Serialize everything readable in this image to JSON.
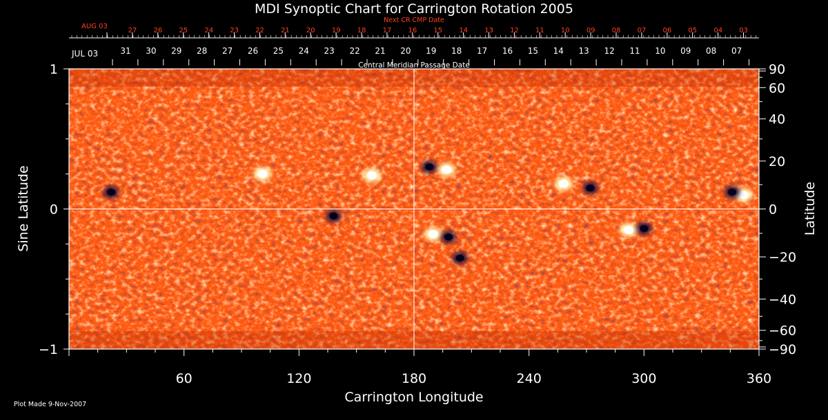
{
  "chart_data": {
    "type": "heatmap",
    "title": "MDI Synoptic Chart for Carrington Rotation 2005",
    "xlabel": "Carrington Longitude",
    "ylabel_left": "Sine Latitude",
    "ylabel_right": "Latitude",
    "xlim": [
      0,
      360
    ],
    "ylim": [
      -1,
      1
    ],
    "x_ticks": [
      60,
      120,
      180,
      240,
      300,
      360
    ],
    "y_ticks_left": [
      -1,
      0,
      1
    ],
    "y_ticks_left_labels": [
      "−1",
      "0",
      "1"
    ],
    "y_ticks_right": [
      90,
      60,
      40,
      20,
      0,
      -20,
      -40,
      -60,
      -90
    ],
    "y_ticks_right_labels": [
      "90",
      "60",
      "40",
      "20",
      "0",
      "−20",
      "−40",
      "−60",
      "−90"
    ],
    "grid": {
      "vertical_line_x": 180,
      "horizontal_line_y": 0
    },
    "top_axis_next_cr": {
      "title": "Next CR CMP Date",
      "start_label": "AUG 03",
      "labels": [
        "27",
        "26",
        "25",
        "24",
        "23",
        "22",
        "21",
        "20",
        "19",
        "18",
        "17",
        "16",
        "15",
        "14",
        "13",
        "12",
        "11",
        "10",
        "09",
        "08",
        "07",
        "06",
        "05",
        "04",
        "03"
      ]
    },
    "top_axis_cmp": {
      "title": "Central Meridian Passage Date",
      "start_label": "JUL 03",
      "labels": [
        "31",
        "30",
        "29",
        "28",
        "27",
        "26",
        "25",
        "24",
        "23",
        "22",
        "21",
        "20",
        "19",
        "18",
        "17",
        "16",
        "15",
        "14",
        "13",
        "12",
        "11",
        "10",
        "09",
        "08",
        "07"
      ]
    },
    "active_regions": [
      {
        "lon": 197,
        "lat_sin": 0.28,
        "polarity": "positive"
      },
      {
        "lon": 188,
        "lat_sin": 0.3,
        "polarity": "negative"
      },
      {
        "lon": 190,
        "lat_sin": -0.18,
        "polarity": "positive"
      },
      {
        "lon": 198,
        "lat_sin": -0.2,
        "polarity": "negative"
      },
      {
        "lon": 204,
        "lat_sin": -0.35,
        "polarity": "negative"
      },
      {
        "lon": 292,
        "lat_sin": -0.15,
        "polarity": "positive"
      },
      {
        "lon": 300,
        "lat_sin": -0.14,
        "polarity": "negative"
      },
      {
        "lon": 352,
        "lat_sin": 0.1,
        "polarity": "positive"
      },
      {
        "lon": 346,
        "lat_sin": 0.12,
        "polarity": "negative"
      },
      {
        "lon": 101,
        "lat_sin": 0.25,
        "polarity": "positive"
      },
      {
        "lon": 158,
        "lat_sin": 0.24,
        "polarity": "positive"
      },
      {
        "lon": 138,
        "lat_sin": -0.05,
        "polarity": "negative"
      },
      {
        "lon": 22,
        "lat_sin": 0.12,
        "polarity": "negative"
      },
      {
        "lon": 258,
        "lat_sin": 0.18,
        "polarity": "positive"
      },
      {
        "lon": 272,
        "lat_sin": 0.15,
        "polarity": "negative"
      }
    ],
    "colors": {
      "background": "#000000",
      "field_base": "#ff5a10",
      "positive": "#ffffc0",
      "negative": "#1a0f40",
      "axis": "#ffffff",
      "top_labels": "#ff4020",
      "grid": "#ffffff"
    },
    "footer": "Plot Made  9-Nov-2007"
  }
}
